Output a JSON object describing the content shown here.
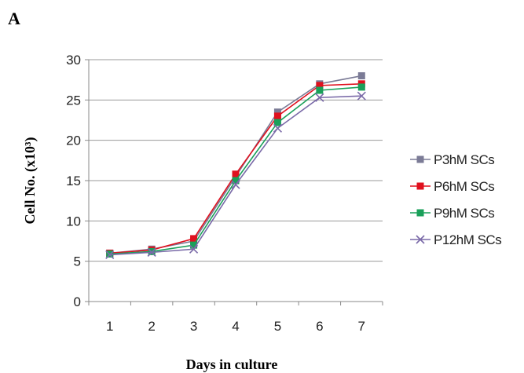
{
  "panel_label": "A",
  "chart_data": {
    "type": "line",
    "x": [
      1,
      2,
      3,
      4,
      5,
      6,
      7
    ],
    "xlabel": "Days in culture",
    "ylabel": "Cell No. (x10³)",
    "ylim": [
      0,
      30
    ],
    "yticks": [
      0,
      5,
      10,
      15,
      20,
      25,
      30
    ],
    "grid": "horizontal",
    "legend_position": "right",
    "series": [
      {
        "name": "P3hM SCs",
        "color": "#7b7b96",
        "marker": "square",
        "values": [
          6.0,
          6.5,
          7.5,
          15.5,
          23.5,
          27.0,
          28.0
        ]
      },
      {
        "name": "P6hM SCs",
        "color": "#e0101e",
        "marker": "square",
        "values": [
          6.0,
          6.4,
          7.8,
          15.8,
          23.0,
          26.8,
          27.0
        ]
      },
      {
        "name": "P9hM SCs",
        "color": "#1aa05a",
        "marker": "square",
        "values": [
          5.9,
          6.2,
          7.0,
          15.0,
          22.2,
          26.2,
          26.6
        ]
      },
      {
        "name": "P12hM SCs",
        "color": "#7a6aa8",
        "marker": "x",
        "values": [
          5.8,
          6.1,
          6.5,
          14.5,
          21.5,
          25.3,
          25.5
        ]
      }
    ]
  }
}
